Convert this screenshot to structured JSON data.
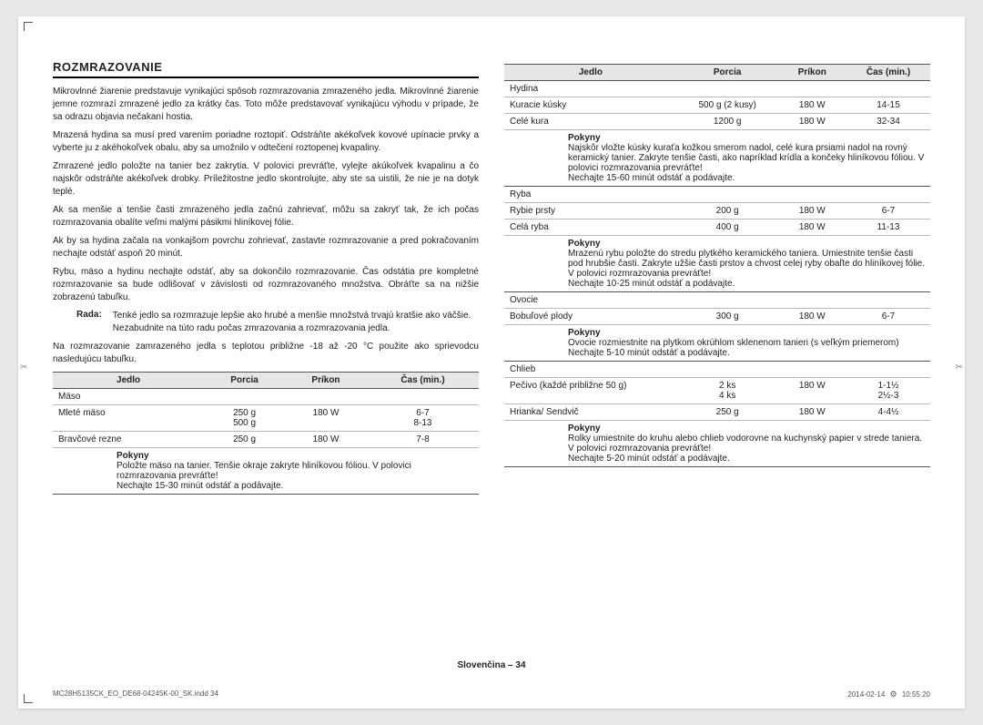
{
  "heading": "Rozmrazovanie",
  "paragraphs": [
    "Mikrovlnné žiarenie predstavuje vynikajúci spôsob rozmrazovania zmrazeného jedla. Mikrovlnné žiarenie jemne rozmrazí zmrazené jedlo za krátky čas. Toto môže predstavovať vynikajúcu výhodu v prípade, že sa odrazu objavia nečakaní hostia.",
    "Mrazená hydina sa musí pred varením poriadne roztopiť. Odstráňte akékoľvek kovové upínacie prvky a vyberte ju z akéhokoľvek obalu, aby sa umožnilo v odtečení roztopenej kvapaliny.",
    "Zmrazené jedlo položte na tanier bez zakrytia. V polovici prevráťte, vylejte akúkoľvek kvapalinu a čo najskôr odstráňte akékoľvek drobky. Príležitostne jedlo skontrolujte, aby ste sa uistili, že nie je na dotyk teplé.",
    "Ak sa menšie a tenšie časti zmrazeného jedla začnú zahrievať, môžu sa zakryť tak, že ich počas rozmrazovania obalíte veľmi malými pásikmi hliníkovej fólie.",
    "Ak by sa hydina začala na vonkajšom povrchu zohrievať, zastavte rozmrazovanie a pred pokračovaním nechajte odstáť aspoň 20 minút.",
    "Rybu, mäso a hydinu nechajte odstáť, aby sa dokončilo rozmrazovanie. Čas odstátia pre kompletné rozmrazovanie sa bude odlišovať v závislosti od rozmrazovaného množstva. Obráťte sa na nižšie zobrazenú tabuľku."
  ],
  "tip_label": "Rada:",
  "tip_text": "Tenké jedlo sa rozmrazuje lepšie ako hrubé a menšie množstvá trvajú kratšie ako väčšie. Nezabudnite na túto radu počas zmrazovania a rozmrazovania jedla.",
  "after_tip": "Na rozmrazovanie zamrazeného jedla s teplotou približne -18 až -20 °C použite ako sprievodcu nasledujúcu tabuľku.",
  "tbl_headers": {
    "c1": "Jedlo",
    "c2": "Porcia",
    "c3": "Príkon",
    "c4": "Čas (min.)"
  },
  "instr_label": "Pokyny",
  "table1": {
    "section1": "Mäso",
    "rows1": [
      {
        "c1": "Mleté mäso",
        "c2": "250 g\n500 g",
        "c3": "180 W",
        "c4": "6-7\n8-13"
      },
      {
        "c1": "Bravčové rezne",
        "c2": "250 g",
        "c3": "180 W",
        "c4": "7-8"
      }
    ],
    "instr1": "Položte mäso na tanier. Tenšie okraje zakryte hliníkovou fóliou. V polovici rozmrazovania prevráťte!\nNechajte 15-30 minút odstáť a podávajte."
  },
  "table2": {
    "sections": [
      {
        "head": "Hydina",
        "rows": [
          {
            "c1": "Kuracie kúsky",
            "c2": "500 g (2 kusy)",
            "c3": "180 W",
            "c4": "14-15"
          },
          {
            "c1": "Celé kura",
            "c2": "1200 g",
            "c3": "180 W",
            "c4": "32-34"
          }
        ],
        "instr": "Najskôr vložte kúsky kuraťa kožkou smerom nadol, celé kura prsiami nadol na rovný keramický tanier. Zakryte tenšie časti, ako napríklad krídla a končeky hliníkovou fóliou. V polovici rozmrazovania prevráťte!\nNechajte 15-60 minút odstáť a podávajte."
      },
      {
        "head": "Ryba",
        "rows": [
          {
            "c1": "Rybie prsty",
            "c2": "200 g",
            "c3": "180 W",
            "c4": "6-7"
          },
          {
            "c1": "Celá ryba",
            "c2": "400 g",
            "c3": "180 W",
            "c4": "11-13"
          }
        ],
        "instr": "Mrazenú rybu položte do stredu plytkého keramického taniera. Umiestnite tenšie časti pod hrubšie časti. Zakryte užšie časti prstov a chvost celej ryby obaľte do hliníkovej fólie. V polovici rozmrazovania prevráťte!\nNechajte 10-25 minút odstáť a podávajte."
      },
      {
        "head": "Ovocie",
        "rows": [
          {
            "c1": "Bobuľové plody",
            "c2": "300 g",
            "c3": "180 W",
            "c4": "6-7"
          }
        ],
        "instr": "Ovocie rozmiestnite na plytkom okrúhlom sklenenom tanieri (s veľkým priemerom) Nechajte 5-10 minút odstáť a podávajte."
      },
      {
        "head": "Chlieb",
        "rows": [
          {
            "c1": "Pečivo (každé približne 50 g)",
            "c2": "2 ks\n4 ks",
            "c3": "180 W",
            "c4": "1-1½\n2½-3"
          },
          {
            "c1": "Hrianka/ Sendvič",
            "c2": "250 g",
            "c3": "180 W",
            "c4": "4-4½"
          }
        ],
        "instr": "Rolky umiestnite do kruhu alebo chlieb vodorovne na kuchynský papier v strede taniera. V polovici rozmrazovania prevráťte!\nNechajte 5-20 minút odstáť a podávajte."
      }
    ]
  },
  "footer_center": "Slovenčina – 34",
  "footer_left": "MC28H5135CK_EO_DE68-04245K-00_SK.indd   34",
  "footer_right_date": "2014-02-14",
  "footer_right_time": "10:55:20"
}
